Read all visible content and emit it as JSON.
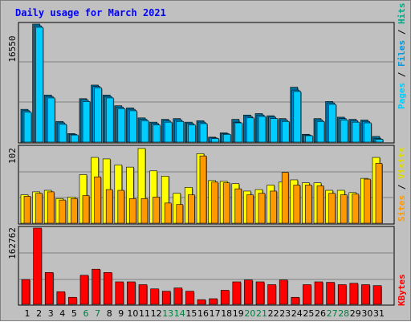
{
  "title": "Daily usage for March 2021",
  "colors": {
    "background": "#c0c0c0",
    "title": "#0000ff",
    "grid": "#808080",
    "pages": "#00ccff",
    "files": "#0099dd",
    "hits": "#00aa88",
    "visits": "#ffff00",
    "sites": "#ff9900",
    "kbytes": "#ff0000",
    "weekend_label": "#008040",
    "weekday_label": "#000000"
  },
  "chart_data": {
    "type": "bar",
    "title": "Daily usage for March 2021",
    "categories": [
      "1",
      "2",
      "3",
      "4",
      "5",
      "6",
      "7",
      "8",
      "9",
      "10",
      "11",
      "12",
      "13",
      "14",
      "15",
      "16",
      "17",
      "18",
      "19",
      "20",
      "21",
      "22",
      "23",
      "24",
      "25",
      "26",
      "27",
      "28",
      "29",
      "30",
      "31"
    ],
    "weekend_days": [
      "6",
      "7",
      "13",
      "14",
      "20",
      "21",
      "27",
      "28"
    ],
    "panels": [
      {
        "id": "top",
        "ymax_label": "16550",
        "ymax": 16550,
        "right_label": [
          "Pages",
          "Files",
          "Hits"
        ],
        "series": [
          {
            "name": "Hits",
            "values": [
              4600,
              16550,
              6600,
              2900,
              1200,
              6100,
              8000,
              6600,
              5100,
              4800,
              3400,
              2800,
              3200,
              3300,
              2800,
              3000,
              700,
              1300,
              3200,
              3800,
              4000,
              3700,
              3300,
              7700,
              1100,
              3300,
              5700,
              3500,
              3200,
              3100,
              800
            ]
          },
          {
            "name": "Files",
            "values": [
              4400,
              16300,
              6400,
              2700,
              1100,
              5900,
              7800,
              6400,
              4900,
              4600,
              3200,
              2600,
              3000,
              3100,
              2600,
              2800,
              600,
              1200,
              2800,
              3600,
              3800,
              3500,
              3100,
              7300,
              1000,
              3100,
              5500,
              3300,
              3000,
              2900,
              500
            ]
          },
          {
            "name": "Pages",
            "values": [
              4200,
              16100,
              6200,
              2500,
              1000,
              5700,
              7600,
              6200,
              4700,
              4400,
              3000,
              2400,
              2800,
              2900,
              2400,
              2600,
              500,
              1100,
              2700,
              3400,
              3600,
              3300,
              2900,
              7100,
              900,
              2900,
              5300,
              3100,
              2800,
              2700,
              400
            ]
          }
        ]
      },
      {
        "id": "middle",
        "ymax_label": "102",
        "ymax": 102,
        "right_label": [
          "Sites",
          "Visits"
        ],
        "series": [
          {
            "name": "Visits",
            "values": [
              38,
              42,
              44,
              33,
              35,
              65,
              88,
              86,
              78,
              75,
              100,
              70,
              63,
              40,
              48,
              93,
              57,
              56,
              53,
              43,
              45,
              51,
              55,
              58,
              54,
              54,
              44,
              44,
              41,
              60,
              88
            ]
          },
          {
            "name": "Sites",
            "values": [
              36,
              40,
              42,
              31,
              33,
              37,
              62,
              45,
              44,
              33,
              33,
              35,
              27,
              25,
              38,
              90,
              55,
              54,
              46,
              38,
              40,
              43,
              68,
              51,
              51,
              50,
              40,
              38,
              39,
              59,
              80
            ]
          }
        ]
      },
      {
        "id": "bottom",
        "ymax_label": "162762",
        "ymax": 162762,
        "right_label": [
          "KBytes"
        ],
        "series": [
          {
            "name": "KBytes",
            "values": [
              53000,
              162762,
              68000,
              27000,
              15000,
              62000,
              75000,
              68000,
              48000,
              48000,
              42000,
              33000,
              28000,
              35000,
              28000,
              10000,
              12000,
              30000,
              48000,
              52000,
              48000,
              42000,
              52000,
              15000,
              42000,
              48000,
              47000,
              42000,
              45000,
              42000,
              40000
            ]
          }
        ]
      }
    ]
  }
}
